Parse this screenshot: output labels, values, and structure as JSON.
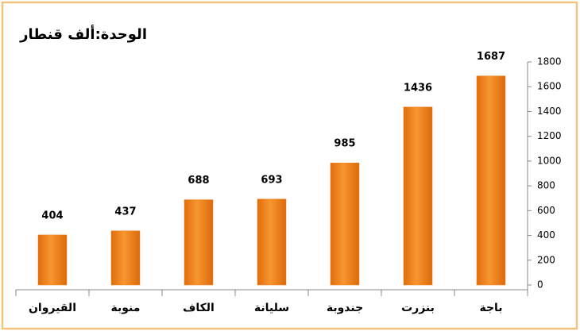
{
  "chart_data": {
    "type": "bar",
    "title": "الوحدة:ألف قنطار",
    "categories": [
      "القيروان",
      "منوبة",
      "الكاف",
      "سليانة",
      "جندوبة",
      "بنزرت",
      "باجة"
    ],
    "values": [
      404,
      437,
      688,
      693,
      985,
      1436,
      1687
    ],
    "color": "#f07f1a",
    "ylim": [
      0,
      1800
    ],
    "yticks": [
      0,
      200,
      400,
      600,
      800,
      1000,
      1200,
      1400,
      1600,
      1800
    ],
    "grid": false,
    "y_axis_side": "right"
  }
}
